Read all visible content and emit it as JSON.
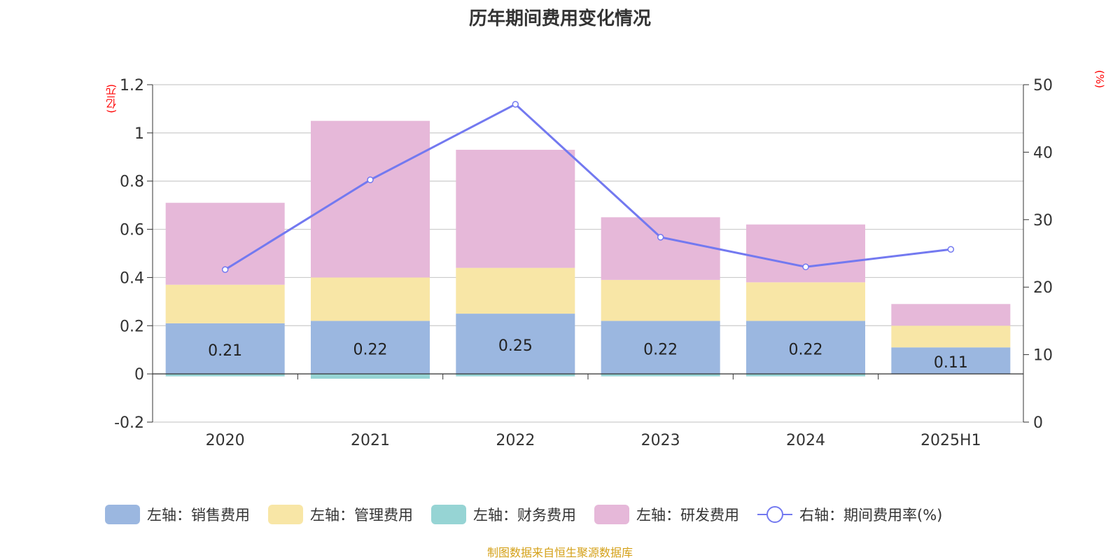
{
  "title": "历年期间费用变化情况",
  "units": {
    "left": "(亿元)",
    "right": "(%)"
  },
  "source": "制图数据来自恒生聚源数据库",
  "colors": {
    "sales": "#9bb7e0",
    "admin": "#f8e6a6",
    "finance": "#96d4d4",
    "rnd": "#e6b8d9",
    "rate": "#7379f0"
  },
  "chart_data": {
    "type": "bar",
    "stacked": true,
    "categories": [
      "2020",
      "2021",
      "2022",
      "2023",
      "2024",
      "2025H1"
    ],
    "series": [
      {
        "name": "左轴：销售费用",
        "axis": "left",
        "color": "#9bb7e0",
        "values": [
          0.21,
          0.22,
          0.25,
          0.22,
          0.22,
          0.11
        ],
        "labels": [
          "0.21",
          "0.22",
          "0.25",
          "0.22",
          "0.22",
          "0.11"
        ]
      },
      {
        "name": "左轴：管理费用",
        "axis": "left",
        "color": "#f8e6a6",
        "values": [
          0.16,
          0.18,
          0.19,
          0.17,
          0.16,
          0.09
        ]
      },
      {
        "name": "左轴：财务费用",
        "axis": "left",
        "color": "#96d4d4",
        "values": [
          -0.01,
          -0.02,
          -0.01,
          -0.01,
          -0.01,
          0.0
        ]
      },
      {
        "name": "左轴：研发费用",
        "axis": "left",
        "color": "#e6b8d9",
        "values": [
          0.34,
          0.65,
          0.49,
          0.26,
          0.24,
          0.09
        ]
      },
      {
        "name": "右轴：期间费用率(%)",
        "axis": "right",
        "type": "line",
        "color": "#7379f0",
        "values": [
          22.6,
          35.9,
          47.1,
          27.4,
          23.0,
          25.6
        ]
      }
    ],
    "left_axis": {
      "min": -0.2,
      "max": 1.2,
      "ticks": [
        "-0.2",
        "0",
        "0.2",
        "0.4",
        "0.6",
        "0.8",
        "1",
        "1.2"
      ]
    },
    "right_axis": {
      "min": 0,
      "max": 50,
      "ticks": [
        "0",
        "10",
        "20",
        "30",
        "40",
        "50"
      ]
    },
    "grid": true,
    "legend_position": "bottom"
  }
}
